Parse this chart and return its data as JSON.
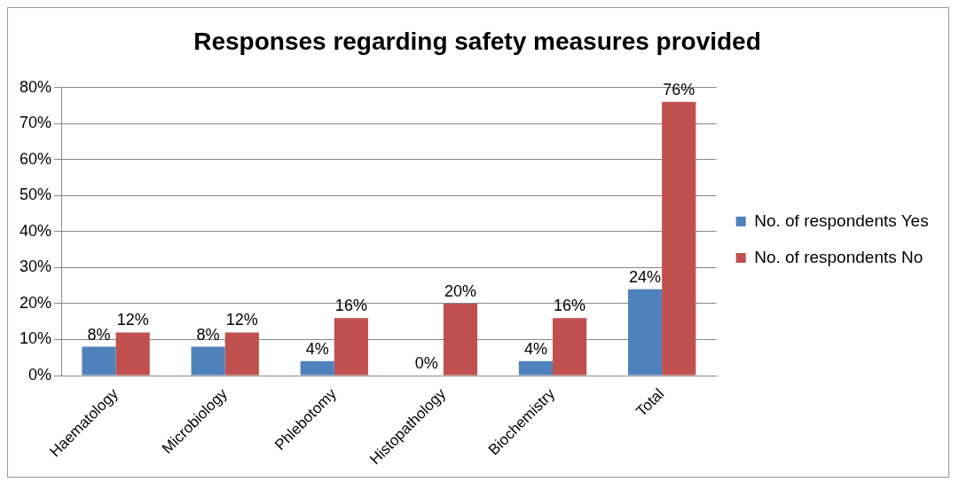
{
  "chart_data": {
    "type": "bar",
    "title": "Responses regarding safety measures provided",
    "categories": [
      "Haematology",
      "Microbiology",
      "Phlebotomy",
      "Histopathology",
      "Biochemistry",
      "Total"
    ],
    "series": [
      {
        "name": "No. of respondents Yes",
        "color": "#4f81bd",
        "values": [
          8,
          8,
          4,
          0,
          4,
          24
        ],
        "value_labels": [
          "8%",
          "8%",
          "4%",
          "0%",
          "4%",
          "24%"
        ]
      },
      {
        "name": "No. of respondents No",
        "color": "#c0504d",
        "values": [
          12,
          12,
          16,
          20,
          16,
          76
        ],
        "value_labels": [
          "12%",
          "12%",
          "16%",
          "20%",
          "16%",
          "76%"
        ]
      }
    ],
    "ylim": [
      0,
      80
    ],
    "yticks": [
      {
        "value": 0,
        "label": "0%"
      },
      {
        "value": 10,
        "label": "10%"
      },
      {
        "value": 20,
        "label": "20%"
      },
      {
        "value": 30,
        "label": "30%"
      },
      {
        "value": 40,
        "label": "40%"
      },
      {
        "value": 50,
        "label": "50%"
      },
      {
        "value": 60,
        "label": "60%"
      },
      {
        "value": 70,
        "label": "70%"
      },
      {
        "value": 80,
        "label": "80%"
      }
    ],
    "grid": "y",
    "legend": "right"
  }
}
